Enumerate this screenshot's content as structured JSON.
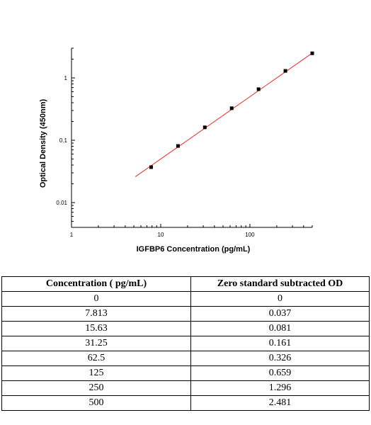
{
  "chart_data": {
    "type": "scatter",
    "scale": "log-log",
    "xlabel": "IGFBP6 Concentration (pg/mL)",
    "ylabel": "Optical Density (450nm)",
    "xlim": [
      1,
      500
    ],
    "ylim": [
      0.004,
      3
    ],
    "x_ticks": [
      1,
      10,
      100
    ],
    "x_tick_labels": [
      "1",
      "10",
      "100"
    ],
    "y_ticks": [
      0.01,
      0.1,
      1
    ],
    "y_tick_labels": [
      "0.01",
      "0.1",
      "1"
    ],
    "points": [
      {
        "x": 7.813,
        "y": 0.037
      },
      {
        "x": 15.63,
        "y": 0.081
      },
      {
        "x": 31.25,
        "y": 0.161
      },
      {
        "x": 62.5,
        "y": 0.326
      },
      {
        "x": 125,
        "y": 0.659
      },
      {
        "x": 250,
        "y": 1.296
      },
      {
        "x": 500,
        "y": 2.481
      }
    ],
    "fit_line": {
      "x": [
        5.2,
        500
      ],
      "y": [
        0.026,
        2.5
      ]
    },
    "marker_color": "#000000",
    "fit_color": "#e8302a"
  },
  "table": {
    "headers": [
      "Concentration ( pg/mL)",
      "Zero standard subtracted OD"
    ],
    "rows": [
      [
        "0",
        "0"
      ],
      [
        "7.813",
        "0.037"
      ],
      [
        "15.63",
        "0.081"
      ],
      [
        "31.25",
        "0.161"
      ],
      [
        "62.5",
        "0.326"
      ],
      [
        "125",
        "0.659"
      ],
      [
        "250",
        "1.296"
      ],
      [
        "500",
        "2.481"
      ]
    ]
  }
}
